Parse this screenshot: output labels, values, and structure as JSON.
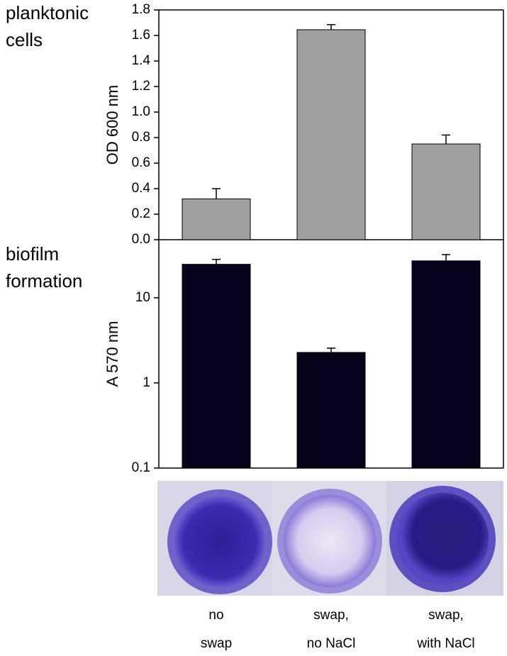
{
  "chart_data": [
    {
      "type": "bar",
      "annotation": [
        "planktonic",
        "cells"
      ],
      "y_label": "OD 600 nm",
      "categories": [
        null,
        null,
        null
      ],
      "values": [
        0.32,
        1.645,
        0.75
      ],
      "errors": [
        0.08,
        0.04,
        0.07
      ],
      "color": "#a0a0a0",
      "ylim": [
        0,
        1.8
      ],
      "yticks": [
        {
          "value": 0,
          "label": "0.0"
        },
        0.2,
        0.4,
        0.6,
        0.8,
        {
          "value": 1,
          "label": "1.0"
        },
        1.2,
        1.4,
        1.6,
        1.8
      ]
    },
    {
      "type": "bar",
      "annotation": [
        "biofilm",
        "formation"
      ],
      "y_label": "A 570 nm",
      "categories": [
        [
          "no",
          "swap"
        ],
        [
          "swap,",
          "no NaCl"
        ],
        [
          "swap,",
          "with NaCl"
        ]
      ],
      "values": [
        24.7,
        2.28,
        27.1
      ],
      "errors": [
        3.5,
        0.28,
        5
      ],
      "color": "#05031c",
      "log_scale": true,
      "ylim": [
        0.1,
        48
      ],
      "yticks": [
        0.1,
        1,
        10
      ]
    }
  ]
}
